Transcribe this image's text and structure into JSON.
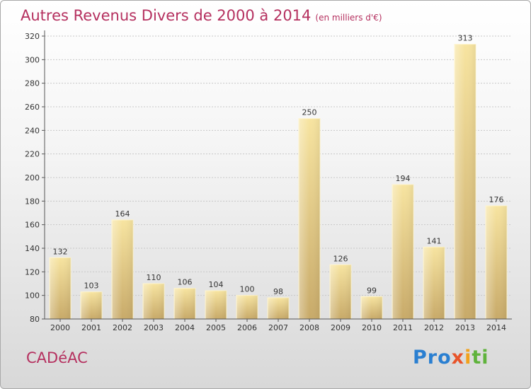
{
  "page": {
    "title": "Autres Revenus Divers de 2000 à 2014",
    "unit": "(en milliers d'€)",
    "commune": "CADéAC",
    "logo": {
      "p1": "Pro",
      "p2": "x",
      "p3": "i",
      "p4": "ti"
    }
  },
  "colors": {
    "title": "#b5305f",
    "bar_light": "#f6e39f",
    "bar_dark": "#c9ac6b"
  },
  "chart_data": {
    "type": "bar",
    "categories": [
      "2000",
      "2001",
      "2002",
      "2003",
      "2004",
      "2005",
      "2006",
      "2007",
      "2008",
      "2009",
      "2010",
      "2011",
      "2012",
      "2013",
      "2014"
    ],
    "values": [
      132,
      103,
      164,
      110,
      106,
      104,
      100,
      98,
      250,
      126,
      99,
      194,
      141,
      313,
      176
    ],
    "ylim": [
      80,
      320
    ],
    "yticks": [
      80,
      100,
      120,
      140,
      160,
      180,
      200,
      220,
      240,
      260,
      280,
      300,
      320
    ],
    "grid": true
  }
}
